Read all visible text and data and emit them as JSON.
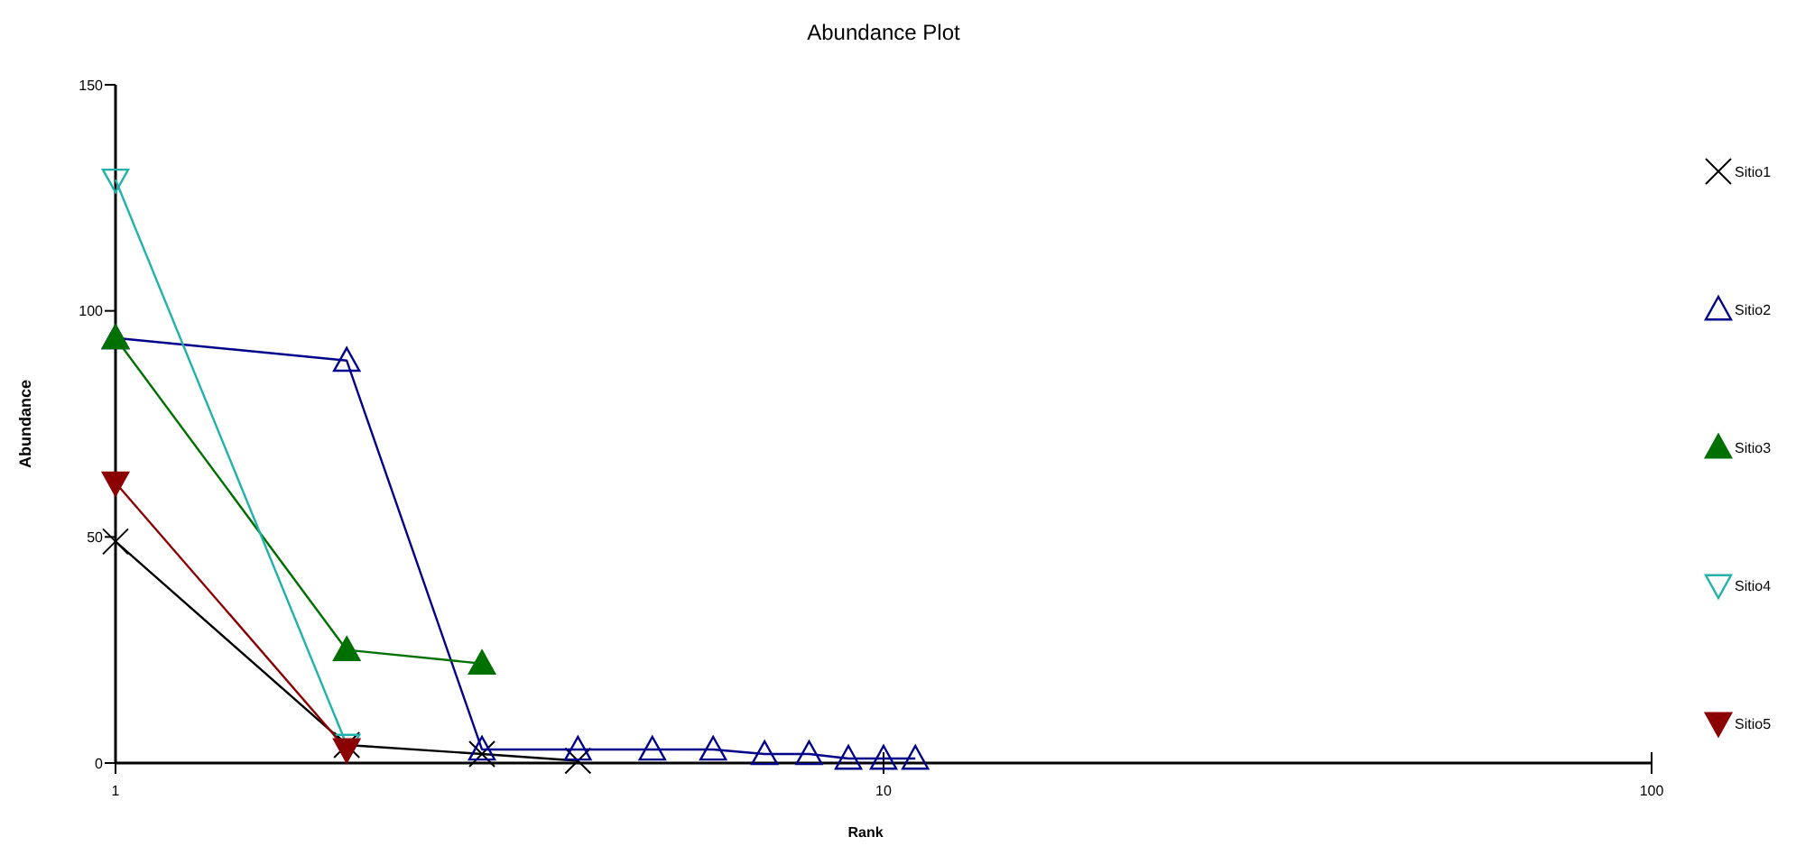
{
  "chart_data": {
    "type": "line",
    "title": "Abundance Plot",
    "xlabel": "Rank",
    "ylabel": "Abundance",
    "log": "x",
    "xlim": [
      1,
      100
    ],
    "xticks": [
      1,
      10,
      100
    ],
    "ylim": [
      0,
      150
    ],
    "yticks": [
      0,
      50,
      100,
      150
    ],
    "grid": false,
    "legend": "right",
    "line_style": "solid",
    "series": [
      {
        "name": "Sitio1",
        "color": "#000000",
        "marker": "cross",
        "x": [
          1,
          2,
          3,
          4
        ],
        "values": [
          49,
          4,
          2,
          0.5
        ]
      },
      {
        "name": "Sitio2",
        "color": "#00008b",
        "marker": "triangle",
        "x": [
          1,
          2,
          3,
          4,
          5,
          6,
          7,
          8,
          9,
          10,
          11
        ],
        "values": [
          94,
          89,
          3,
          3,
          3,
          3,
          2,
          2,
          1,
          1,
          1
        ]
      },
      {
        "name": "Sitio3",
        "color": "#007000",
        "marker": "triangle",
        "x": [
          1,
          2,
          3
        ],
        "values": [
          94,
          25,
          22
        ]
      },
      {
        "name": "Sitio4",
        "color": "#20b2aa",
        "marker": "triangle-down",
        "x": [
          1,
          2
        ],
        "values": [
          129,
          4
        ]
      },
      {
        "name": "Sitio5",
        "color": "#8b0000",
        "marker": "triangle-down",
        "x": [
          1,
          2
        ],
        "values": [
          62,
          3
        ]
      }
    ]
  }
}
